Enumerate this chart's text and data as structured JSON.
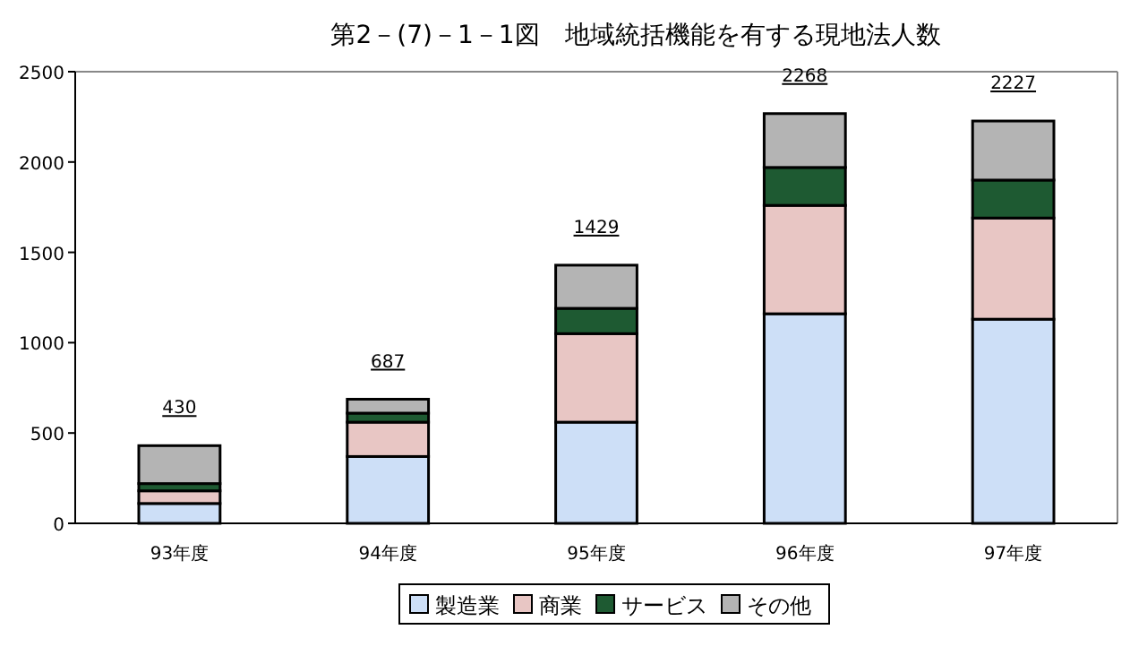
{
  "chart_data": {
    "type": "bar",
    "title": "第2－(7)－1－1図　地域統括機能を有する現地法人数",
    "categories": [
      "93年度",
      "94年度",
      "95年度",
      "96年度",
      "97年度"
    ],
    "stacked": true,
    "ylim": [
      0,
      2500
    ],
    "yticks": [
      0,
      500,
      1000,
      1500,
      2000,
      2500
    ],
    "grid": false,
    "legend": "bottom",
    "series": [
      {
        "name": "製造業",
        "color": "#cddff7",
        "values": [
          110,
          370,
          560,
          1160,
          1130
        ]
      },
      {
        "name": "商業",
        "color": "#e8c6c4",
        "values": [
          70,
          190,
          490,
          600,
          560
        ]
      },
      {
        "name": "サービス",
        "color": "#1e5a32",
        "values": [
          40,
          50,
          140,
          210,
          210
        ]
      },
      {
        "name": "その他",
        "color": "#b4b4b4",
        "values": [
          210,
          77,
          239,
          298,
          327
        ]
      }
    ],
    "totals": [
      "430",
      "687",
      "1429",
      "2268",
      "2227"
    ]
  }
}
